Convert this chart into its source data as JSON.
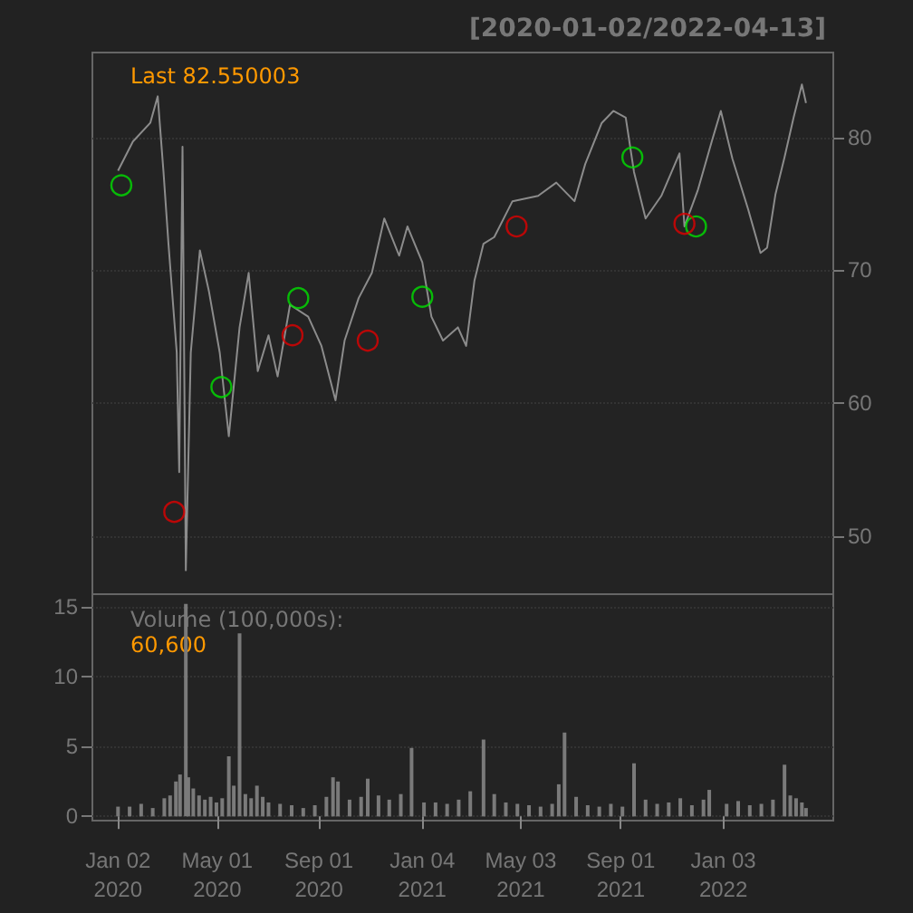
{
  "chart_data": [
    {
      "type": "line",
      "subtitle": "[2020-01-02/2022-04-13]",
      "annotations": [
        "Last 82.550003"
      ],
      "xlim": [
        "2019-12-02",
        "2022-05-16"
      ],
      "ylim": [
        45.6,
        86.4
      ],
      "yticks": [
        50,
        60,
        70,
        80
      ],
      "grid": "y",
      "tick_labels": "y",
      "series": [
        {
          "type": "line",
          "color": "#8c8c8c",
          "x": [
            "2020-01-02",
            "2020-01-20",
            "2020-02-10",
            "2020-02-19",
            "2020-02-26",
            "2020-03-03",
            "2020-03-13",
            "2020-03-16",
            "2020-03-20",
            "2020-03-24",
            "2020-03-30",
            "2020-04-10",
            "2020-04-21",
            "2020-05-04",
            "2020-05-15",
            "2020-05-28",
            "2020-06-08",
            "2020-06-19",
            "2020-07-02",
            "2020-07-13",
            "2020-07-28",
            "2020-08-19",
            "2020-09-04",
            "2020-09-21",
            "2020-10-02",
            "2020-10-19",
            "2020-11-04",
            "2020-11-19",
            "2020-12-07",
            "2020-12-17",
            "2021-01-04",
            "2021-01-15",
            "2021-01-29",
            "2021-02-16",
            "2021-02-26",
            "2021-03-08",
            "2021-03-19",
            "2021-04-01",
            "2021-04-23",
            "2021-05-24",
            "2021-06-15",
            "2021-07-07",
            "2021-07-20",
            "2021-08-09",
            "2021-08-23",
            "2021-09-07",
            "2021-09-17",
            "2021-10-01",
            "2021-10-20",
            "2021-11-11",
            "2021-11-17",
            "2021-12-03",
            "2021-12-20",
            "2021-12-31",
            "2022-01-14",
            "2022-02-02",
            "2022-02-17",
            "2022-02-25",
            "2022-03-07",
            "2022-03-18",
            "2022-03-29",
            "2022-04-08",
            "2022-04-13"
          ],
          "values": [
            77.5,
            79.7,
            81.1,
            83.1,
            77.4,
            72,
            63.8,
            54.8,
            79.3,
            47.4,
            63.8,
            71.5,
            68.4,
            63.8,
            57.5,
            65.7,
            69.8,
            62.4,
            65.1,
            62,
            67.4,
            66.5,
            64.3,
            60.2,
            64.7,
            67.9,
            69.8,
            73.9,
            71.1,
            73.3,
            70.6,
            66.5,
            64.7,
            65.7,
            64.3,
            69.2,
            72,
            72.5,
            75.2,
            75.6,
            76.6,
            75.2,
            78,
            81.1,
            82,
            81.5,
            77.4,
            73.9,
            75.6,
            78.8,
            73.3,
            76,
            79.7,
            82,
            78.4,
            74.6,
            71.3,
            71.7,
            75.7,
            78.5,
            81.5,
            84,
            82.6
          ]
        },
        {
          "type": "scatter",
          "color": "#00e000",
          "marker": "circle",
          "x": [
            "2020-01-06",
            "2020-05-06",
            "2020-08-07",
            "2021-01-04",
            "2021-09-15",
            "2021-12-01"
          ],
          "values": [
            76.4,
            61.2,
            67.9,
            68.0,
            78.5,
            73.3
          ]
        },
        {
          "type": "scatter",
          "color": "#e00000",
          "marker": "circle",
          "x": [
            "2020-03-10",
            "2020-07-31",
            "2020-10-30",
            "2021-04-28",
            "2021-11-17"
          ],
          "values": [
            51.8,
            65.1,
            64.7,
            73.3,
            73.5
          ]
        }
      ]
    },
    {
      "type": "bar",
      "annotations": [
        "Volume (100,000s):",
        "60,600"
      ],
      "xlim": [
        "2019-12-02",
        "2022-05-16"
      ],
      "xticks": [
        {
          "value": "2020-01-02",
          "label": "Jan 02\n2020"
        },
        {
          "value": "2020-05-01",
          "label": "May 01\n2020"
        },
        {
          "value": "2020-09-01",
          "label": "Sep 01\n2020"
        },
        {
          "value": "2021-01-04",
          "label": "Jan 04\n2021"
        },
        {
          "value": "2021-05-03",
          "label": "May 03\n2021"
        },
        {
          "value": "2021-09-01",
          "label": "Sep 01\n2021"
        },
        {
          "value": "2022-01-03",
          "label": "Jan 03\n2022"
        }
      ],
      "ylim": [
        -0.3,
        15.9
      ],
      "yticks": [
        0,
        5,
        10,
        15
      ],
      "grid": "y",
      "series": [
        {
          "color": "#7a7a7a",
          "x": [
            "2020-01-02",
            "2020-01-16",
            "2020-01-30",
            "2020-02-13",
            "2020-02-27",
            "2020-03-05",
            "2020-03-12",
            "2020-03-17",
            "2020-03-24",
            "2020-03-27",
            "2020-04-02",
            "2020-04-09",
            "2020-04-16",
            "2020-04-23",
            "2020-04-30",
            "2020-05-07",
            "2020-05-15",
            "2020-05-21",
            "2020-05-28",
            "2020-06-04",
            "2020-06-11",
            "2020-06-18",
            "2020-06-25",
            "2020-07-02",
            "2020-07-16",
            "2020-07-30",
            "2020-08-13",
            "2020-08-27",
            "2020-09-10",
            "2020-09-18",
            "2020-09-24",
            "2020-10-08",
            "2020-10-22",
            "2020-10-30",
            "2020-11-12",
            "2020-11-25",
            "2020-12-09",
            "2020-12-22",
            "2021-01-06",
            "2021-01-20",
            "2021-02-03",
            "2021-02-17",
            "2021-03-03",
            "2021-03-19",
            "2021-04-01",
            "2021-04-15",
            "2021-04-29",
            "2021-05-13",
            "2021-05-27",
            "2021-06-10",
            "2021-06-18",
            "2021-06-25",
            "2021-07-09",
            "2021-07-23",
            "2021-08-06",
            "2021-08-20",
            "2021-09-03",
            "2021-09-17",
            "2021-10-01",
            "2021-10-15",
            "2021-10-29",
            "2021-11-12",
            "2021-11-26",
            "2021-12-10",
            "2021-12-17",
            "2022-01-07",
            "2022-01-21",
            "2022-02-04",
            "2022-02-18",
            "2022-03-04",
            "2022-03-18",
            "2022-03-25",
            "2022-04-01",
            "2022-04-08",
            "2022-04-13"
          ],
          "values": [
            0.7,
            0.7,
            0.9,
            0.6,
            1.3,
            1.5,
            2.5,
            3.0,
            15.2,
            2.8,
            2.0,
            1.5,
            1.2,
            1.4,
            1.0,
            1.3,
            4.3,
            2.2,
            13.1,
            1.6,
            1.3,
            2.2,
            1.4,
            1.0,
            0.9,
            0.8,
            0.6,
            0.8,
            1.4,
            2.8,
            2.5,
            1.2,
            1.4,
            2.7,
            1.5,
            1.2,
            1.6,
            4.9,
            1.0,
            1.0,
            0.9,
            1.2,
            1.8,
            5.5,
            1.6,
            1.0,
            0.9,
            0.8,
            0.7,
            0.9,
            2.3,
            6.0,
            1.4,
            0.8,
            0.7,
            0.9,
            0.7,
            3.8,
            1.2,
            0.9,
            1.0,
            1.3,
            0.8,
            1.2,
            1.9,
            0.9,
            1.1,
            0.8,
            0.9,
            1.2,
            3.7,
            1.5,
            1.3,
            1.0,
            0.6
          ]
        }
      ]
    }
  ]
}
